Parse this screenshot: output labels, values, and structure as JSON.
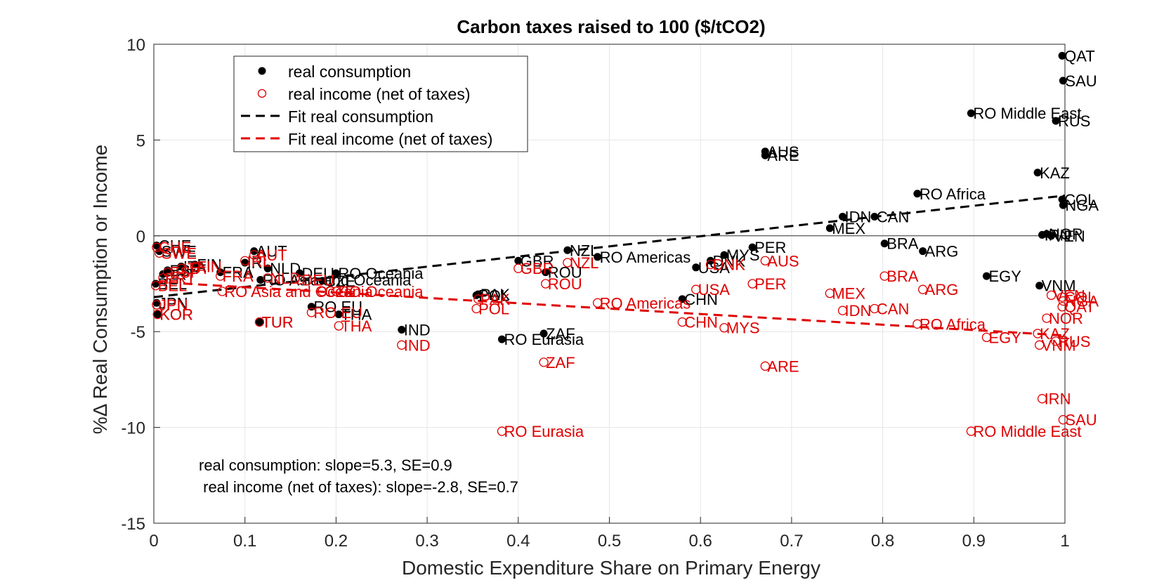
{
  "chart_data": {
    "type": "scatter",
    "title": "Carbon taxes raised to 100 ($/tCO2)",
    "xlabel": "Domestic Expenditure Share on Primary Energy",
    "ylabel": "%Δ Real Consumption or Income",
    "xlim": [
      0,
      1
    ],
    "ylim": [
      -15,
      10
    ],
    "xticks": [
      0,
      0.1,
      0.2,
      0.3,
      0.4,
      0.5,
      0.6,
      0.7,
      0.8,
      0.9,
      1
    ],
    "xtick_labels": [
      "0",
      "0.1",
      "0.2",
      "0.3",
      "0.4",
      "0.5",
      "0.6",
      "0.7",
      "0.8",
      "0.9",
      "1"
    ],
    "yticks": [
      -15,
      -10,
      -5,
      0,
      5,
      10
    ],
    "ytick_labels": [
      "-15",
      "-10",
      "-5",
      "0",
      "5",
      "10"
    ],
    "grid": true,
    "legend_position": "top-left",
    "colors": {
      "consumption": "#000000",
      "income": "#e00000"
    },
    "series": [
      {
        "name": "real consumption",
        "marker": "filled-dot",
        "points": [
          {
            "label": "QAT",
            "x": 0.997,
            "y": 9.4
          },
          {
            "label": "SAU",
            "x": 0.998,
            "y": 8.1
          },
          {
            "label": "RO Middle East",
            "x": 0.897,
            "y": 6.4
          },
          {
            "label": "RUS",
            "x": 0.99,
            "y": 6.0
          },
          {
            "label": "AUS",
            "x": 0.671,
            "y": 4.4
          },
          {
            "label": "ARE",
            "x": 0.671,
            "y": 4.2
          },
          {
            "label": "KAZ",
            "x": 0.97,
            "y": 3.3
          },
          {
            "label": "RO Africa",
            "x": 0.838,
            "y": 2.2
          },
          {
            "label": "COL",
            "x": 0.997,
            "y": 1.9
          },
          {
            "label": "NGA",
            "x": 0.998,
            "y": 1.6
          },
          {
            "label": "IDN",
            "x": 0.756,
            "y": 1.0
          },
          {
            "label": "CAN",
            "x": 0.791,
            "y": 1.0
          },
          {
            "label": "MEX",
            "x": 0.742,
            "y": 0.4
          },
          {
            "label": "NOR",
            "x": 0.98,
            "y": 0.1
          },
          {
            "label": "IRN",
            "x": 0.975,
            "y": 0.05
          },
          {
            "label": "VEN",
            "x": 0.985,
            "y": 0.0
          },
          {
            "label": "BRA",
            "x": 0.802,
            "y": -0.4
          },
          {
            "label": "PER",
            "x": 0.657,
            "y": -0.6
          },
          {
            "label": "ARG",
            "x": 0.844,
            "y": -0.8
          },
          {
            "label": "NZL",
            "x": 0.454,
            "y": -0.75
          },
          {
            "label": "AUT",
            "x": 0.11,
            "y": -0.8
          },
          {
            "label": "MYS",
            "x": 0.626,
            "y": -1.0
          },
          {
            "label": "RO Americas",
            "x": 0.487,
            "y": -1.1
          },
          {
            "label": "DNK",
            "x": 0.611,
            "y": -1.3
          },
          {
            "label": "GBR",
            "x": 0.4,
            "y": -1.3
          },
          {
            "label": "IRL",
            "x": 0.1,
            "y": -1.4
          },
          {
            "label": "FIN",
            "x": 0.045,
            "y": -1.5
          },
          {
            "label": "USA",
            "x": 0.595,
            "y": -1.65
          },
          {
            "label": "NLD",
            "x": 0.125,
            "y": -1.7
          },
          {
            "label": "ROU",
            "x": 0.43,
            "y": -1.9
          },
          {
            "label": "RO Oceania",
            "x": 0.2,
            "y": -1.95
          },
          {
            "label": "DEU",
            "x": 0.16,
            "y": -1.95
          },
          {
            "label": "FRA",
            "x": 0.073,
            "y": -1.9
          },
          {
            "label": "ITA",
            "x": 0.03,
            "y": -1.6
          },
          {
            "label": "ESP",
            "x": 0.015,
            "y": -1.8
          },
          {
            "label": "PRT",
            "x": 0.01,
            "y": -2.0
          },
          {
            "label": "SWE",
            "x": 0.006,
            "y": -0.8
          },
          {
            "label": "CHE",
            "x": 0.003,
            "y": -0.5
          },
          {
            "label": "RO Asia and Oceania",
            "x": 0.117,
            "y": -2.3
          },
          {
            "label": "CZE",
            "x": 0.185,
            "y": -2.35
          },
          {
            "label": "BEL",
            "x": 0.002,
            "y": -2.5
          },
          {
            "label": "EGY",
            "x": 0.914,
            "y": -2.1
          },
          {
            "label": "VNM",
            "x": 0.972,
            "y": -2.6
          },
          {
            "label": "POL",
            "x": 0.354,
            "y": -3.1
          },
          {
            "label": "PAK",
            "x": 0.356,
            "y": -3.05
          },
          {
            "label": "CHN",
            "x": 0.58,
            "y": -3.3
          },
          {
            "label": "JPN",
            "x": 0.003,
            "y": -3.5
          },
          {
            "label": "RO EU",
            "x": 0.173,
            "y": -3.7
          },
          {
            "label": "KOR",
            "x": 0.004,
            "y": -4.1
          },
          {
            "label": "THA",
            "x": 0.203,
            "y": -4.1
          },
          {
            "label": "TUR",
            "x": 0.116,
            "y": -4.5
          },
          {
            "label": "IND",
            "x": 0.272,
            "y": -4.9
          },
          {
            "label": "ZAF",
            "x": 0.428,
            "y": -5.1
          },
          {
            "label": "RO Eurasia",
            "x": 0.382,
            "y": -5.4
          }
        ]
      },
      {
        "name": "real income (net of taxes)",
        "marker": "open-circle",
        "points": [
          {
            "label": "CHE",
            "x": 0.003,
            "y": -0.6
          },
          {
            "label": "SWE",
            "x": 0.006,
            "y": -0.9
          },
          {
            "label": "AUT",
            "x": 0.11,
            "y": -1.0
          },
          {
            "label": "IRL",
            "x": 0.1,
            "y": -1.3
          },
          {
            "label": "FIN",
            "x": 0.045,
            "y": -1.6
          },
          {
            "label": "ITA",
            "x": 0.03,
            "y": -1.7
          },
          {
            "label": "ESP",
            "x": 0.015,
            "y": -1.9
          },
          {
            "label": "PRT",
            "x": 0.01,
            "y": -2.2
          },
          {
            "label": "FRA",
            "x": 0.073,
            "y": -2.1
          },
          {
            "label": "NLD",
            "x": 0.125,
            "y": -2.2
          },
          {
            "label": "DEU",
            "x": 0.16,
            "y": -2.3
          },
          {
            "label": "BEL",
            "x": 0.002,
            "y": -2.6
          },
          {
            "label": "RO Asia and Oceania",
            "x": 0.075,
            "y": -2.9
          },
          {
            "label": "CZE",
            "x": 0.185,
            "y": -2.9
          },
          {
            "label": "RO Oceania",
            "x": 0.2,
            "y": -2.9
          },
          {
            "label": "JPN",
            "x": 0.003,
            "y": -3.6
          },
          {
            "label": "KOR",
            "x": 0.004,
            "y": -4.1
          },
          {
            "label": "RO EU",
            "x": 0.173,
            "y": -4.0
          },
          {
            "label": "TUR",
            "x": 0.116,
            "y": -4.5
          },
          {
            "label": "THA",
            "x": 0.203,
            "y": -4.7
          },
          {
            "label": "IND",
            "x": 0.272,
            "y": -5.7
          },
          {
            "label": "GBR",
            "x": 0.4,
            "y": -1.7
          },
          {
            "label": "NZL",
            "x": 0.454,
            "y": -1.4
          },
          {
            "label": "ROU",
            "x": 0.43,
            "y": -2.5
          },
          {
            "label": "PAK",
            "x": 0.356,
            "y": -3.3
          },
          {
            "label": "POL",
            "x": 0.354,
            "y": -3.8
          },
          {
            "label": "RO Americas",
            "x": 0.487,
            "y": -3.5
          },
          {
            "label": "ZAF",
            "x": 0.428,
            "y": -6.6
          },
          {
            "label": "RO Eurasia",
            "x": 0.382,
            "y": -10.2
          },
          {
            "label": "DNK",
            "x": 0.611,
            "y": -1.5
          },
          {
            "label": "AUS",
            "x": 0.671,
            "y": -1.3
          },
          {
            "label": "USA",
            "x": 0.595,
            "y": -2.8
          },
          {
            "label": "PER",
            "x": 0.657,
            "y": -2.5
          },
          {
            "label": "CHN",
            "x": 0.58,
            "y": -4.5
          },
          {
            "label": "MYS",
            "x": 0.626,
            "y": -4.8
          },
          {
            "label": "ARE",
            "x": 0.671,
            "y": -6.8
          },
          {
            "label": "MEX",
            "x": 0.742,
            "y": -3.0
          },
          {
            "label": "BRA",
            "x": 0.802,
            "y": -2.1
          },
          {
            "label": "ARG",
            "x": 0.844,
            "y": -2.8
          },
          {
            "label": "IDN",
            "x": 0.756,
            "y": -3.9
          },
          {
            "label": "CAN",
            "x": 0.791,
            "y": -3.8
          },
          {
            "label": "RO Africa",
            "x": 0.838,
            "y": -4.6
          },
          {
            "label": "EGY",
            "x": 0.914,
            "y": -5.3
          },
          {
            "label": "VEN",
            "x": 0.985,
            "y": -3.1
          },
          {
            "label": "COL",
            "x": 0.997,
            "y": -3.2
          },
          {
            "label": "NGA",
            "x": 0.998,
            "y": -3.4
          },
          {
            "label": "QAT",
            "x": 0.997,
            "y": -3.7
          },
          {
            "label": "NOR",
            "x": 0.98,
            "y": -4.3
          },
          {
            "label": "KAZ",
            "x": 0.97,
            "y": -5.1
          },
          {
            "label": "RUS",
            "x": 0.99,
            "y": -5.5
          },
          {
            "label": "VNM",
            "x": 0.972,
            "y": -5.7
          },
          {
            "label": "IRN",
            "x": 0.975,
            "y": -8.5
          },
          {
            "label": "SAU",
            "x": 0.998,
            "y": -9.6
          },
          {
            "label": "RO Middle East",
            "x": 0.897,
            "y": -10.2
          }
        ]
      },
      {
        "name": "Fit real consumption",
        "style": "dashed-line",
        "x": [
          0,
          1
        ],
        "y": [
          -3.2,
          2.1
        ]
      },
      {
        "name": "Fit real income (net of taxes)",
        "style": "dashed-line",
        "x": [
          0,
          1
        ],
        "y": [
          -2.4,
          -5.2
        ]
      }
    ],
    "annotations": [
      "real consumption: slope=5.3, SE=0.9",
      " real income (net of taxes): slope=-2.8, SE=0.7"
    ]
  }
}
